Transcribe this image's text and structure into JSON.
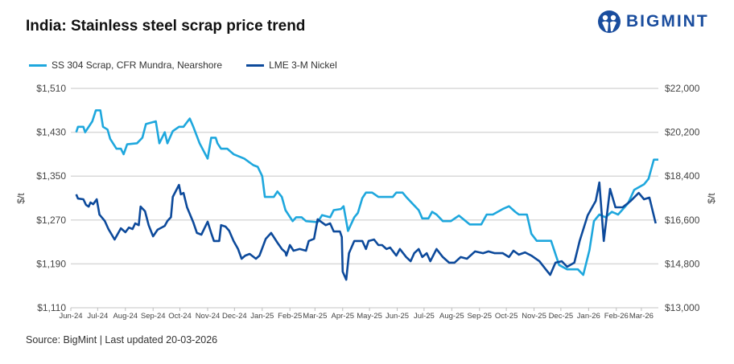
{
  "header": {
    "title": "India: Stainless steel scrap price trend",
    "logo_text": "BIGMINT"
  },
  "footer": {
    "source": "Source: BigMint | Last updated 20-03-2026"
  },
  "colors": {
    "ss304": "#1ea7dd",
    "nickel": "#0d4a9b",
    "grid": "#d9d9d9",
    "brand": "#1a4d9e"
  },
  "chart_data": {
    "type": "line",
    "title": "India: Stainless steel scrap price trend",
    "legend_placement": "top-left",
    "grid": true,
    "x_range": [
      "2024-06-01",
      "2026-03-20"
    ],
    "x_ticks": [
      "Jun-24",
      "Jul-24",
      "Aug-24",
      "Sep-24",
      "Oct-24",
      "Nov-24",
      "Dec-24",
      "Jan-25",
      "Feb-25",
      "Mar-25",
      "Apr-25",
      "May-25",
      "Jun-25",
      "Jul-25",
      "Aug-25",
      "Sep-25",
      "Oct-25",
      "Nov-25",
      "Dec-25",
      "Jan-26",
      "Feb-26",
      "Mar-26"
    ],
    "x_tick_dates": [
      "2024-06-01",
      "2024-07-01",
      "2024-08-01",
      "2024-09-01",
      "2024-10-01",
      "2024-11-01",
      "2024-12-01",
      "2025-01-01",
      "2025-02-01",
      "2025-03-01",
      "2025-04-01",
      "2025-05-01",
      "2025-06-01",
      "2025-07-01",
      "2025-08-01",
      "2025-09-01",
      "2025-10-01",
      "2025-11-01",
      "2025-12-01",
      "2026-01-01",
      "2026-02-01",
      "2026-03-01"
    ],
    "y_left": {
      "label": "$/t",
      "range": [
        1110,
        1510
      ],
      "ticks": [
        1110,
        1190,
        1270,
        1350,
        1430,
        1510
      ],
      "tick_labels": [
        "$1,110",
        "$1,190",
        "$1,270",
        "$1,350",
        "$1,430",
        "$1,510"
      ]
    },
    "y_right": {
      "label": "$/t",
      "range": [
        13000,
        22000
      ],
      "ticks": [
        13000,
        14800,
        16600,
        18400,
        20200,
        22000
      ],
      "tick_labels": [
        "$13,000",
        "$14,800",
        "$16,600",
        "$18,400",
        "$20,200",
        "$22,000"
      ]
    },
    "series": [
      {
        "name": "SS 304 Scrap, CFR Mundra, Nearshore",
        "axis": "left",
        "color": "#1ea7dd",
        "x": [
          "2024-06-07",
          "2024-06-09",
          "2024-06-15",
          "2024-06-17",
          "2024-06-25",
          "2024-06-29",
          "2024-07-04",
          "2024-07-07",
          "2024-07-12",
          "2024-07-15",
          "2024-07-22",
          "2024-07-27",
          "2024-07-30",
          "2024-08-03",
          "2024-08-14",
          "2024-08-20",
          "2024-08-24",
          "2024-09-04",
          "2024-09-08",
          "2024-09-14",
          "2024-09-17",
          "2024-09-23",
          "2024-09-30",
          "2024-10-05",
          "2024-10-12",
          "2024-10-16",
          "2024-10-23",
          "2024-11-01",
          "2024-11-05",
          "2024-11-10",
          "2024-11-12",
          "2024-11-16",
          "2024-11-23",
          "2024-11-30",
          "2024-12-12",
          "2024-12-22",
          "2024-12-27",
          "2025-01-01",
          "2025-01-04",
          "2025-01-14",
          "2025-01-18",
          "2025-01-23",
          "2025-01-27",
          "2025-02-04",
          "2025-02-08",
          "2025-02-14",
          "2025-02-19",
          "2025-03-04",
          "2025-03-09",
          "2025-03-18",
          "2025-03-22",
          "2025-03-30",
          "2025-04-02",
          "2025-04-07",
          "2025-04-14",
          "2025-04-18",
          "2025-04-23",
          "2025-04-27",
          "2025-05-04",
          "2025-05-11",
          "2025-05-27",
          "2025-05-31",
          "2025-06-07",
          "2025-06-11",
          "2025-06-18",
          "2025-06-25",
          "2025-06-29",
          "2025-07-06",
          "2025-07-10",
          "2025-07-15",
          "2025-07-22",
          "2025-07-31",
          "2025-08-09",
          "2025-08-21",
          "2025-09-03",
          "2025-09-09",
          "2025-09-16",
          "2025-09-27",
          "2025-10-04",
          "2025-10-11",
          "2025-10-15",
          "2025-10-24",
          "2025-10-29",
          "2025-11-04",
          "2025-11-20",
          "2025-11-29",
          "2025-12-08",
          "2025-12-20",
          "2025-12-26",
          "2026-01-02",
          "2026-01-07",
          "2026-01-13",
          "2026-01-20",
          "2026-01-27",
          "2026-02-03",
          "2026-02-14",
          "2026-02-21",
          "2026-03-04",
          "2026-03-09",
          "2026-03-15",
          "2026-03-20"
        ],
        "values": [
          1430,
          1440,
          1440,
          1430,
          1450,
          1470,
          1470,
          1440,
          1435,
          1418,
          1400,
          1400,
          1390,
          1408,
          1410,
          1420,
          1445,
          1450,
          1410,
          1430,
          1410,
          1432,
          1440,
          1440,
          1455,
          1440,
          1410,
          1382,
          1420,
          1420,
          1410,
          1400,
          1400,
          1390,
          1382,
          1370,
          1367,
          1350,
          1312,
          1312,
          1322,
          1312,
          1288,
          1268,
          1275,
          1275,
          1268,
          1266,
          1279,
          1275,
          1288,
          1290,
          1295,
          1250,
          1275,
          1283,
          1310,
          1320,
          1320,
          1312,
          1312,
          1320,
          1320,
          1312,
          1300,
          1288,
          1273,
          1273,
          1285,
          1280,
          1268,
          1268,
          1278,
          1262,
          1262,
          1280,
          1280,
          1290,
          1295,
          1285,
          1280,
          1280,
          1245,
          1232,
          1232,
          1188,
          1180,
          1180,
          1170,
          1215,
          1268,
          1280,
          1275,
          1285,
          1280,
          1300,
          1325,
          1335,
          1345,
          1380,
          1380
        ]
      },
      {
        "name": "LME 3-M Nickel",
        "axis": "right",
        "color": "#0d4a9b",
        "x": [
          "2024-06-07",
          "2024-06-09",
          "2024-06-15",
          "2024-06-18",
          "2024-06-21",
          "2024-06-23",
          "2024-06-26",
          "2024-06-30",
          "2024-07-03",
          "2024-07-09",
          "2024-07-13",
          "2024-07-20",
          "2024-07-27",
          "2024-08-01",
          "2024-08-05",
          "2024-08-09",
          "2024-08-12",
          "2024-08-16",
          "2024-08-18",
          "2024-08-23",
          "2024-08-27",
          "2024-09-01",
          "2024-09-06",
          "2024-09-14",
          "2024-09-17",
          "2024-09-21",
          "2024-09-23",
          "2024-09-30",
          "2024-10-02",
          "2024-10-05",
          "2024-10-09",
          "2024-10-16",
          "2024-10-20",
          "2024-10-25",
          "2024-11-01",
          "2024-11-05",
          "2024-11-08",
          "2024-11-14",
          "2024-11-16",
          "2024-11-21",
          "2024-11-25",
          "2024-11-30",
          "2024-12-05",
          "2024-12-09",
          "2024-12-13",
          "2024-12-18",
          "2024-12-25",
          "2024-12-29",
          "2024-12-31",
          "2025-01-05",
          "2025-01-11",
          "2025-01-18",
          "2025-01-23",
          "2025-01-27",
          "2025-01-28",
          "2025-02-01",
          "2025-02-05",
          "2025-02-12",
          "2025-02-19",
          "2025-02-22",
          "2025-02-28",
          "2025-03-04",
          "2025-03-13",
          "2025-03-18",
          "2025-03-22",
          "2025-03-29",
          "2025-03-31",
          "2025-04-01",
          "2025-04-05",
          "2025-04-08",
          "2025-04-14",
          "2025-04-23",
          "2025-04-27",
          "2025-04-30",
          "2025-05-06",
          "2025-05-11",
          "2025-05-15",
          "2025-05-20",
          "2025-05-24",
          "2025-05-31",
          "2025-06-04",
          "2025-06-11",
          "2025-06-16",
          "2025-06-20",
          "2025-06-25",
          "2025-06-29",
          "2025-07-04",
          "2025-07-08",
          "2025-07-15",
          "2025-07-22",
          "2025-07-29",
          "2025-08-04",
          "2025-08-11",
          "2025-08-18",
          "2025-08-27",
          "2025-09-05",
          "2025-09-11",
          "2025-09-18",
          "2025-09-27",
          "2025-10-04",
          "2025-10-09",
          "2025-10-15",
          "2025-10-22",
          "2025-10-29",
          "2025-11-07",
          "2025-11-14",
          "2025-11-19",
          "2025-11-25",
          "2025-12-02",
          "2025-12-08",
          "2025-12-16",
          "2025-12-22",
          "2025-12-31",
          "2026-01-09",
          "2026-01-13",
          "2026-01-18",
          "2026-01-25",
          "2026-01-31",
          "2026-02-08",
          "2026-02-17",
          "2026-02-26",
          "2026-03-04",
          "2026-03-10",
          "2026-03-17"
        ],
        "values": [
          17650,
          17480,
          17450,
          17220,
          17150,
          17320,
          17250,
          17450,
          16820,
          16560,
          16230,
          15800,
          16260,
          16100,
          16290,
          16230,
          16460,
          16390,
          17150,
          16960,
          16390,
          15930,
          16200,
          16360,
          16560,
          16720,
          17550,
          18040,
          17650,
          17710,
          17120,
          16500,
          16070,
          16000,
          16530,
          16070,
          15740,
          15740,
          16390,
          16330,
          16160,
          15740,
          15410,
          15010,
          15140,
          15210,
          15010,
          15140,
          15340,
          15830,
          16070,
          15670,
          15410,
          15270,
          15140,
          15570,
          15340,
          15410,
          15340,
          15740,
          15830,
          16630,
          16390,
          16460,
          16130,
          16130,
          15900,
          14480,
          14150,
          15240,
          15740,
          15740,
          15410,
          15740,
          15800,
          15570,
          15570,
          15410,
          15470,
          15140,
          15410,
          15080,
          14910,
          15240,
          15410,
          15080,
          15240,
          14910,
          15410,
          15080,
          14850,
          14850,
          15080,
          15010,
          15310,
          15240,
          15310,
          15240,
          15240,
          15080,
          15340,
          15180,
          15270,
          15140,
          14910,
          14580,
          14350,
          14850,
          14910,
          14680,
          14850,
          15740,
          16790,
          17380,
          18140,
          15740,
          17880,
          17120,
          17120,
          17380,
          17710,
          17450,
          17520,
          16460
        ]
      }
    ]
  }
}
